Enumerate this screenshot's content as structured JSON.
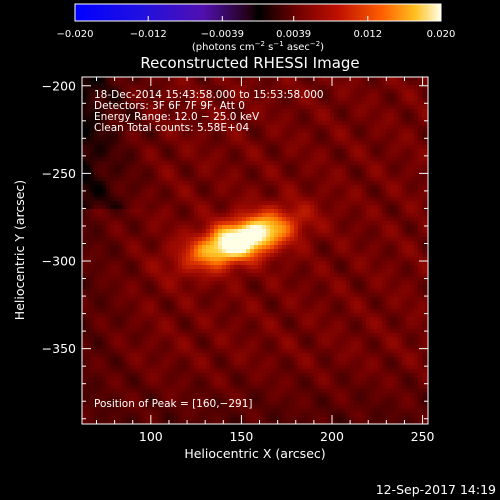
{
  "chart_data": {
    "type": "heatmap",
    "title": "Reconstructed RHESSI Image",
    "xlabel": "Heliocentric X (arcsec)",
    "ylabel": "Heliocentric Y (arcsec)",
    "xlim": [
      62,
      253
    ],
    "ylim": [
      -393,
      -195
    ],
    "x_ticks": [
      100,
      150,
      200,
      250
    ],
    "x_tick_labels": [
      "100",
      "150",
      "200",
      "250"
    ],
    "y_ticks": [
      -200,
      -250,
      -300,
      -350
    ],
    "y_tick_labels": [
      "−200",
      "−250",
      "−300",
      "−350"
    ],
    "colorbar": {
      "range": [
        -0.02,
        0.02
      ],
      "ticks": [
        -0.02,
        -0.012,
        -0.0039,
        0.0039,
        0.012,
        0.02
      ],
      "tick_labels": [
        "−0.020",
        "−0.012",
        "−0.0039",
        "0.0039",
        "0.012",
        "0.020"
      ],
      "unit_label": "(photons cm",
      "unit_sup1": "−2",
      "unit_mid": " s",
      "unit_sup2": "−1",
      "unit_mid2": " asec",
      "unit_sup3": "−2",
      "unit_close": ")"
    },
    "annotations": [
      "18-Dec-2014 15:43:58.000 to 15:53:58.000",
      "Detectors: 3F 6F 7F 9F, Att 0",
      "Energy Range: 12.0 − 25.0 keV",
      "Clean    Total counts: 5.58E+04"
    ],
    "peak_label": "Position of Peak = [160,−291]",
    "peak": [
      160,
      -291
    ],
    "source": {
      "x": 150,
      "y": -288,
      "peak_value": 0.02
    }
  },
  "footer": {
    "date": "12-Sep-2017 14:19"
  }
}
